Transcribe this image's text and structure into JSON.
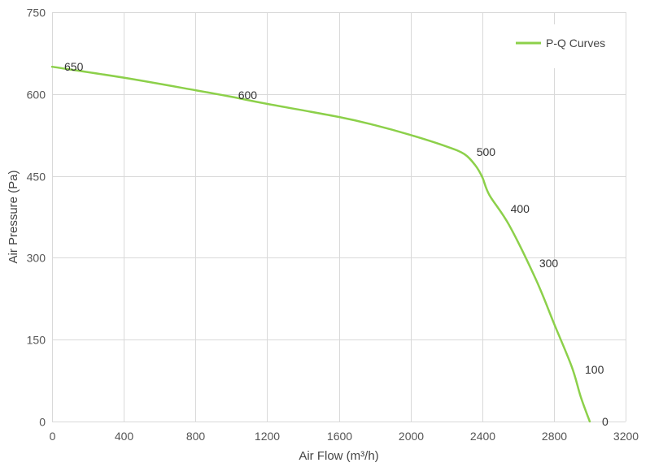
{
  "chart_data": {
    "type": "line",
    "xlabel": "Air Flow  (m³/h)",
    "ylabel": "Air Pressure  (Pa)",
    "xlim": [
      0,
      3200
    ],
    "ylim": [
      0,
      750
    ],
    "xticks": [
      "0",
      "400",
      "800",
      "1200",
      "1600",
      "2000",
      "2400",
      "2800",
      "3200"
    ],
    "yticks": [
      "0",
      "150",
      "300",
      "450",
      "600",
      "750"
    ],
    "grid": true,
    "legend_position": "top-right",
    "color": "#8cd04a",
    "series": [
      {
        "name": "P-Q Curves",
        "x": [
          0,
          400,
          800,
          1000,
          1200,
          1600,
          1800,
          2000,
          2200,
          2300,
          2360,
          2400,
          2440,
          2550,
          2700,
          2800,
          2900,
          2950,
          3000
        ],
        "y": [
          650,
          630,
          607,
          595,
          582,
          558,
          543,
          525,
          504,
          490,
          470,
          448,
          415,
          360,
          260,
          180,
          100,
          45,
          0
        ]
      }
    ],
    "data_labels": [
      {
        "text": "650",
        "x": 0,
        "y": 650
      },
      {
        "text": "600",
        "x": 970,
        "y": 598
      },
      {
        "text": "500",
        "x": 2300,
        "y": 494
      },
      {
        "text": "400",
        "x": 2490,
        "y": 390
      },
      {
        "text": "300",
        "x": 2650,
        "y": 290
      },
      {
        "text": "100",
        "x": 2905,
        "y": 95
      },
      {
        "text": "0",
        "x": 3000,
        "y": 0
      }
    ]
  }
}
